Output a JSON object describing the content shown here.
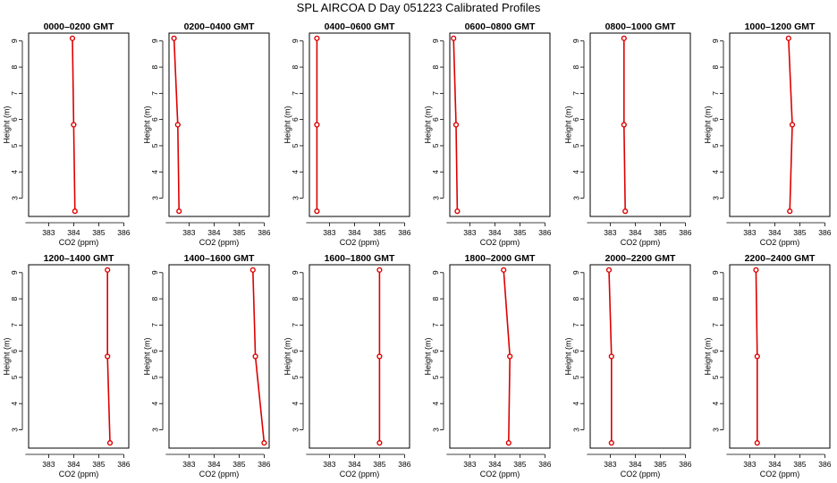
{
  "title": "SPL AIRCOA D  Day 051223  Calibrated Profiles",
  "colors": {
    "line": "#dd0000",
    "point": "#dd0000"
  },
  "chart_data": [
    {
      "type": "line",
      "title": "0000–0200 GMT",
      "xlabel": "CO2 (ppm)",
      "ylabel": "Height (m)",
      "xlim": [
        382.2,
        386.2
      ],
      "ylim": [
        2.3,
        9.3
      ],
      "xticks": [
        "383",
        "384",
        "385",
        "386"
      ],
      "yticks": [
        "3",
        "4",
        "5",
        "6",
        "7",
        "8",
        "9"
      ],
      "series": [
        {
          "x": [
            383.95,
            384.0,
            384.05
          ],
          "y": [
            9.1,
            5.8,
            2.5
          ]
        }
      ]
    },
    {
      "type": "line",
      "title": "0200–0400 GMT",
      "xlabel": "CO2 (ppm)",
      "ylabel": "Height (m)",
      "xlim": [
        382.2,
        386.2
      ],
      "ylim": [
        2.3,
        9.3
      ],
      "xticks": [
        "383",
        "384",
        "385",
        "386"
      ],
      "yticks": [
        "3",
        "4",
        "5",
        "6",
        "7",
        "8",
        "9"
      ],
      "series": [
        {
          "x": [
            382.4,
            382.55,
            382.6
          ],
          "y": [
            9.1,
            5.8,
            2.5
          ]
        }
      ]
    },
    {
      "type": "line",
      "title": "0400–0600 GMT",
      "xlabel": "CO2 (ppm)",
      "ylabel": "Height (m)",
      "xlim": [
        382.2,
        386.2
      ],
      "ylim": [
        2.3,
        9.3
      ],
      "xticks": [
        "383",
        "384",
        "385",
        "386"
      ],
      "yticks": [
        "3",
        "4",
        "5",
        "6",
        "7",
        "8",
        "9"
      ],
      "series": [
        {
          "x": [
            382.5,
            382.5,
            382.5
          ],
          "y": [
            9.1,
            5.8,
            2.5
          ]
        }
      ]
    },
    {
      "type": "line",
      "title": "0600–0800 GMT",
      "xlabel": "CO2 (ppm)",
      "ylabel": "Height (m)",
      "xlim": [
        382.2,
        386.2
      ],
      "ylim": [
        2.3,
        9.3
      ],
      "xticks": [
        "383",
        "384",
        "385",
        "386"
      ],
      "yticks": [
        "3",
        "4",
        "5",
        "6",
        "7",
        "8",
        "9"
      ],
      "series": [
        {
          "x": [
            382.35,
            382.45,
            382.5
          ],
          "y": [
            9.1,
            5.8,
            2.5
          ]
        }
      ]
    },
    {
      "type": "line",
      "title": "0800–1000 GMT",
      "xlabel": "CO2 (ppm)",
      "ylabel": "Height (m)",
      "xlim": [
        382.2,
        386.2
      ],
      "ylim": [
        2.3,
        9.3
      ],
      "xticks": [
        "383",
        "384",
        "385",
        "386"
      ],
      "yticks": [
        "3",
        "4",
        "5",
        "6",
        "7",
        "8",
        "9"
      ],
      "series": [
        {
          "x": [
            383.55,
            383.55,
            383.6
          ],
          "y": [
            9.1,
            5.8,
            2.5
          ]
        }
      ]
    },
    {
      "type": "line",
      "title": "1000–1200 GMT",
      "xlabel": "CO2 (ppm)",
      "ylabel": "Height (m)",
      "xlim": [
        382.2,
        386.2
      ],
      "ylim": [
        2.3,
        9.3
      ],
      "xticks": [
        "383",
        "384",
        "385",
        "386"
      ],
      "yticks": [
        "3",
        "4",
        "5",
        "6",
        "7",
        "8",
        "9"
      ],
      "series": [
        {
          "x": [
            384.55,
            384.7,
            384.6
          ],
          "y": [
            9.1,
            5.8,
            2.5
          ]
        }
      ]
    },
    {
      "type": "line",
      "title": "1200–1400 GMT",
      "xlabel": "CO2 (ppm)",
      "ylabel": "Height (m)",
      "xlim": [
        382.2,
        386.2
      ],
      "ylim": [
        2.3,
        9.3
      ],
      "xticks": [
        "383",
        "384",
        "385",
        "386"
      ],
      "yticks": [
        "3",
        "4",
        "5",
        "6",
        "7",
        "8",
        "9"
      ],
      "series": [
        {
          "x": [
            385.35,
            385.35,
            385.45
          ],
          "y": [
            9.1,
            5.8,
            2.5
          ]
        }
      ]
    },
    {
      "type": "line",
      "title": "1400–1600 GMT",
      "xlabel": "CO2 (ppm)",
      "ylabel": "Height (m)",
      "xlim": [
        382.2,
        386.2
      ],
      "ylim": [
        2.3,
        9.3
      ],
      "xticks": [
        "383",
        "384",
        "385",
        "386"
      ],
      "yticks": [
        "3",
        "4",
        "5",
        "6",
        "7",
        "8",
        "9"
      ],
      "series": [
        {
          "x": [
            385.55,
            385.65,
            386.0
          ],
          "y": [
            9.1,
            5.8,
            2.5
          ]
        }
      ]
    },
    {
      "type": "line",
      "title": "1600–1800 GMT",
      "xlabel": "CO2 (ppm)",
      "ylabel": "Height (m)",
      "xlim": [
        382.2,
        386.2
      ],
      "ylim": [
        2.3,
        9.3
      ],
      "xticks": [
        "383",
        "384",
        "385",
        "386"
      ],
      "yticks": [
        "3",
        "4",
        "5",
        "6",
        "7",
        "8",
        "9"
      ],
      "series": [
        {
          "x": [
            385.0,
            385.0,
            385.0
          ],
          "y": [
            9.1,
            5.8,
            2.5
          ]
        }
      ]
    },
    {
      "type": "line",
      "title": "1800–2000 GMT",
      "xlabel": "CO2 (ppm)",
      "ylabel": "Height (m)",
      "xlim": [
        382.2,
        386.2
      ],
      "ylim": [
        2.3,
        9.3
      ],
      "xticks": [
        "383",
        "384",
        "385",
        "386"
      ],
      "yticks": [
        "3",
        "4",
        "5",
        "6",
        "7",
        "8",
        "9"
      ],
      "series": [
        {
          "x": [
            384.35,
            384.6,
            384.55
          ],
          "y": [
            9.1,
            5.8,
            2.5
          ]
        }
      ]
    },
    {
      "type": "line",
      "title": "2000–2200 GMT",
      "xlabel": "CO2 (ppm)",
      "ylabel": "Height (m)",
      "xlim": [
        382.2,
        386.2
      ],
      "ylim": [
        2.3,
        9.3
      ],
      "xticks": [
        "383",
        "384",
        "385",
        "386"
      ],
      "yticks": [
        "3",
        "4",
        "5",
        "6",
        "7",
        "8",
        "9"
      ],
      "series": [
        {
          "x": [
            382.95,
            383.05,
            383.05
          ],
          "y": [
            9.1,
            5.8,
            2.5
          ]
        }
      ]
    },
    {
      "type": "line",
      "title": "2200–2400 GMT",
      "xlabel": "CO2 (ppm)",
      "ylabel": "Height (m)",
      "xlim": [
        382.2,
        386.2
      ],
      "ylim": [
        2.3,
        9.3
      ],
      "xticks": [
        "383",
        "384",
        "385",
        "386"
      ],
      "yticks": [
        "3",
        "4",
        "5",
        "6",
        "7",
        "8",
        "9"
      ],
      "series": [
        {
          "x": [
            383.25,
            383.3,
            383.3
          ],
          "y": [
            9.1,
            5.8,
            2.5
          ]
        }
      ]
    }
  ]
}
